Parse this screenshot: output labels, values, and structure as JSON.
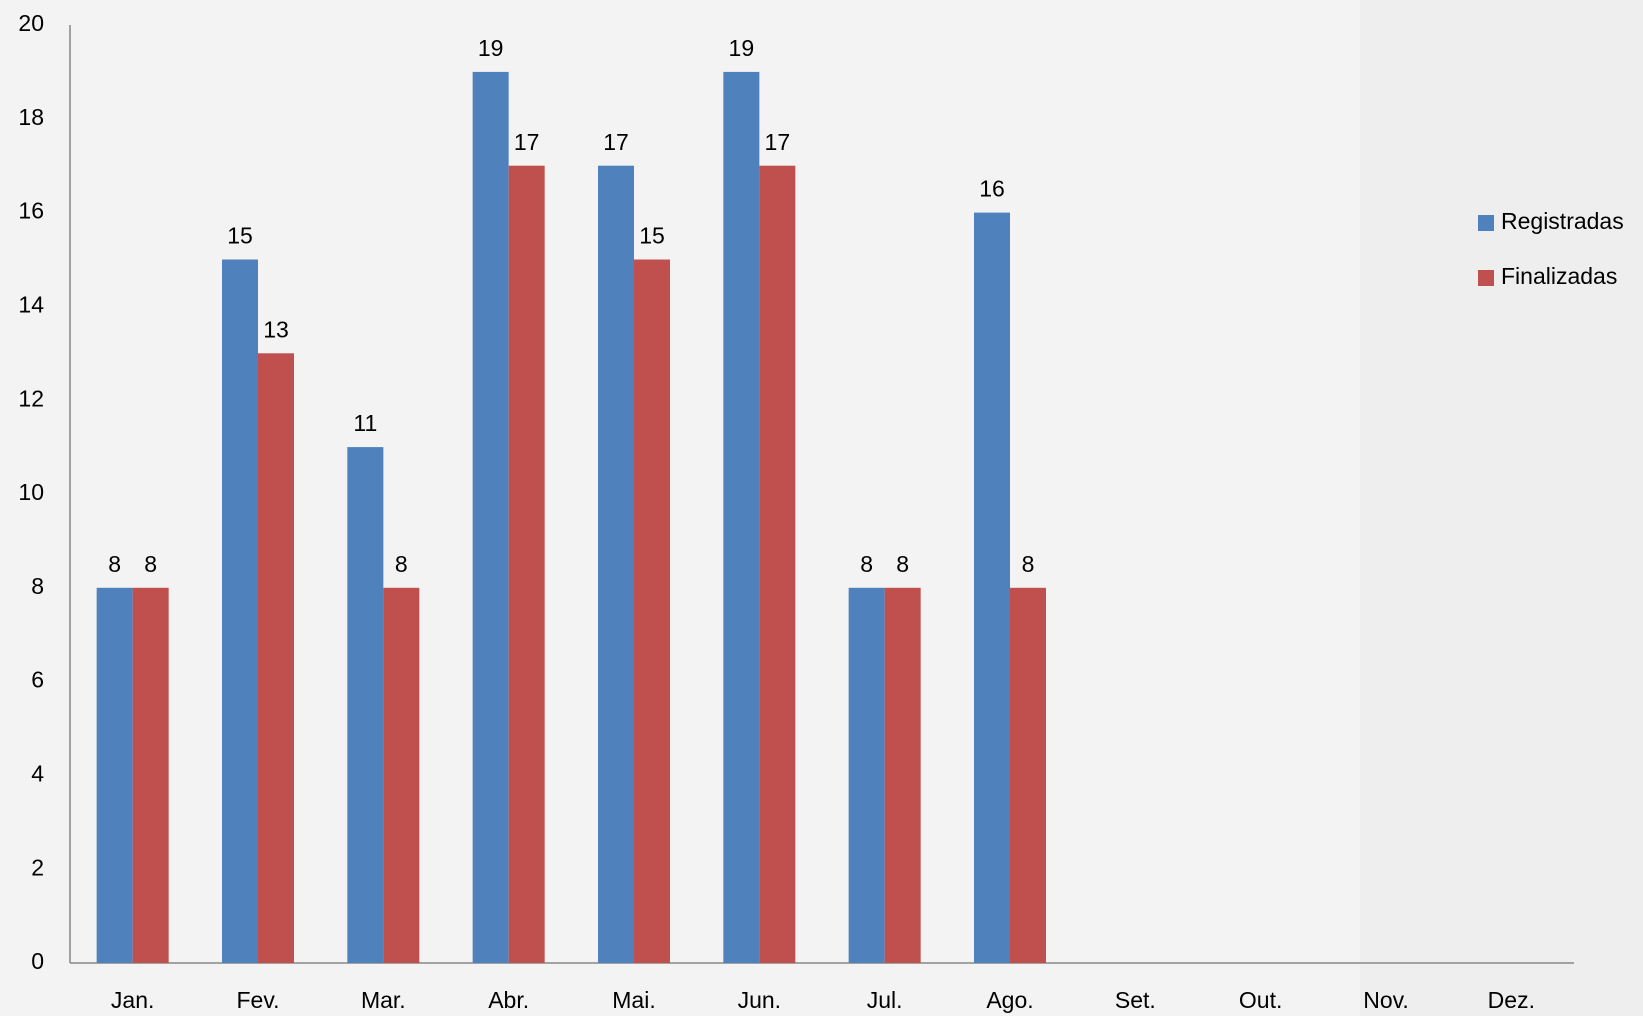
{
  "chart_data": {
    "type": "bar",
    "categories": [
      "Jan.",
      "Fev.",
      "Mar.",
      "Abr.",
      "Mai.",
      "Jun.",
      "Jul.",
      "Ago.",
      "Set.",
      "Out.",
      "Nov.",
      "Dez."
    ],
    "series": [
      {
        "name": "Registradas",
        "color": "#4f81bd",
        "values": [
          8,
          15,
          11,
          19,
          17,
          19,
          8,
          16,
          null,
          null,
          null,
          null
        ]
      },
      {
        "name": "Finalizadas",
        "color": "#c0504d",
        "values": [
          8,
          13,
          8,
          17,
          15,
          17,
          8,
          8,
          null,
          null,
          null,
          null
        ]
      }
    ],
    "ylim": [
      0,
      20
    ],
    "yticks": [
      0,
      2,
      4,
      6,
      8,
      10,
      12,
      14,
      16,
      18,
      20
    ],
    "grid": false,
    "legend": "right",
    "data_labels": true
  }
}
